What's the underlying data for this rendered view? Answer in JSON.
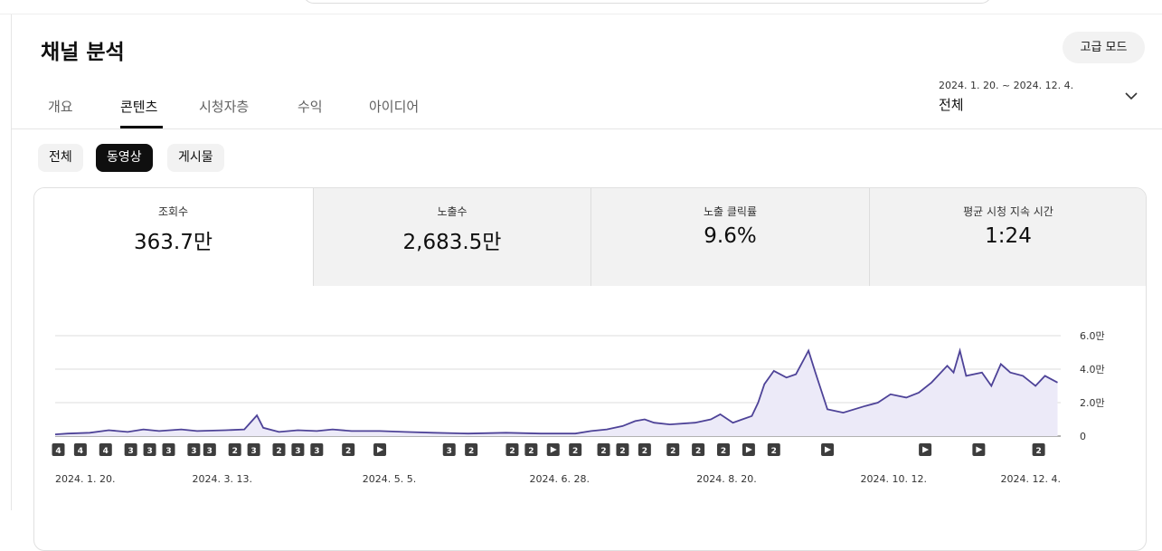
{
  "header": {
    "title": "채널 분석",
    "button": "고급 모드",
    "date_range": "2024. 1. 20. ~ 2024. 12. 4.",
    "period": "전체"
  },
  "tabs": [
    {
      "label": "개요"
    },
    {
      "label": "콘텐츠",
      "active": true
    },
    {
      "label": "시청자층"
    },
    {
      "label": "수익"
    },
    {
      "label": "아이디어"
    }
  ],
  "filters": [
    {
      "label": "전체"
    },
    {
      "label": "동영상",
      "active": true
    },
    {
      "label": "게시물"
    }
  ],
  "metrics": [
    {
      "label": "조회수",
      "value": "363.7만",
      "active": true
    },
    {
      "label": "노출수",
      "value": "2,683.5만"
    },
    {
      "label": "노출 클릭률",
      "value": "9.6%"
    },
    {
      "label": "평균 시청 지속 시간",
      "value": "1:24"
    }
  ],
  "chart_data": {
    "type": "area",
    "color": "#4e4398",
    "fill": "#eceaf8",
    "x": [
      0,
      4,
      11,
      17,
      23,
      28,
      33,
      40,
      45,
      54,
      60,
      64,
      66,
      71,
      77,
      83,
      88,
      94,
      103,
      111,
      120,
      131,
      143,
      154,
      165,
      170,
      175,
      180,
      184,
      187,
      190,
      195,
      203,
      208,
      211,
      215,
      218,
      221,
      223,
      225,
      228,
      232,
      235,
      239,
      241,
      245,
      250,
      257,
      261,
      265,
      270,
      274,
      278,
      283,
      285,
      287,
      289,
      294,
      297,
      300,
      303,
      307,
      311,
      314,
      318
    ],
    "values": [
      0.1,
      0.15,
      0.2,
      0.35,
      0.25,
      0.4,
      0.3,
      0.4,
      0.3,
      0.35,
      0.4,
      1.24,
      0.5,
      0.25,
      0.35,
      0.3,
      0.4,
      0.3,
      0.3,
      0.25,
      0.2,
      0.15,
      0.2,
      0.15,
      0.15,
      0.3,
      0.4,
      0.6,
      0.9,
      1.0,
      0.8,
      0.7,
      0.8,
      1.0,
      1.3,
      0.8,
      1.0,
      1.2,
      2.0,
      3.1,
      3.9,
      3.5,
      3.7,
      5.1,
      3.9,
      1.6,
      1.4,
      1.8,
      2.0,
      2.5,
      2.3,
      2.6,
      3.2,
      4.2,
      3.8,
      5.1,
      3.6,
      3.8,
      3.0,
      4.3,
      3.8,
      3.6,
      3.0,
      3.6,
      3.2
    ],
    "xlim": [
      0,
      319
    ],
    "xticks": [
      {
        "value": 0,
        "label": "2024. 1. 20."
      },
      {
        "value": 53,
        "label": "2024. 3. 13."
      },
      {
        "value": 106,
        "label": "2024. 5. 5."
      },
      {
        "value": 160,
        "label": "2024. 6. 28."
      },
      {
        "value": 213,
        "label": "2024. 8. 20."
      },
      {
        "value": 266,
        "label": "2024. 10. 12."
      },
      {
        "value": 319,
        "label": "2024. 12. 4."
      }
    ],
    "ylim": [
      0,
      6
    ],
    "yticks": [
      0,
      {
        "value": 2,
        "label": "2.0만"
      },
      {
        "value": 4,
        "label": "4.0만"
      },
      {
        "value": 6,
        "label": "6.0만"
      }
    ],
    "grid": true,
    "markers": [
      {
        "x": 1,
        "label": "4"
      },
      {
        "x": 8,
        "label": "4"
      },
      {
        "x": 16,
        "label": "4"
      },
      {
        "x": 24,
        "label": "3"
      },
      {
        "x": 30,
        "label": "3"
      },
      {
        "x": 36,
        "label": "3"
      },
      {
        "x": 44,
        "label": "3"
      },
      {
        "x": 49,
        "label": "3"
      },
      {
        "x": 57,
        "label": "2"
      },
      {
        "x": 63,
        "label": "3"
      },
      {
        "x": 71,
        "label": "2"
      },
      {
        "x": 77,
        "label": "3"
      },
      {
        "x": 83,
        "label": "3"
      },
      {
        "x": 93,
        "label": "2"
      },
      {
        "x": 103
      },
      {
        "x": 125,
        "label": "3"
      },
      {
        "x": 132,
        "label": "2"
      },
      {
        "x": 145,
        "label": "2"
      },
      {
        "x": 151,
        "label": "2"
      },
      {
        "x": 158
      },
      {
        "x": 165,
        "label": "2"
      },
      {
        "x": 174,
        "label": "2"
      },
      {
        "x": 180,
        "label": "2"
      },
      {
        "x": 187,
        "label": "2"
      },
      {
        "x": 196,
        "label": "2"
      },
      {
        "x": 204,
        "label": "2"
      },
      {
        "x": 212,
        "label": "2"
      },
      {
        "x": 220
      },
      {
        "x": 228,
        "label": "2"
      },
      {
        "x": 245
      },
      {
        "x": 276
      },
      {
        "x": 293
      },
      {
        "x": 312,
        "label": "2"
      }
    ]
  }
}
